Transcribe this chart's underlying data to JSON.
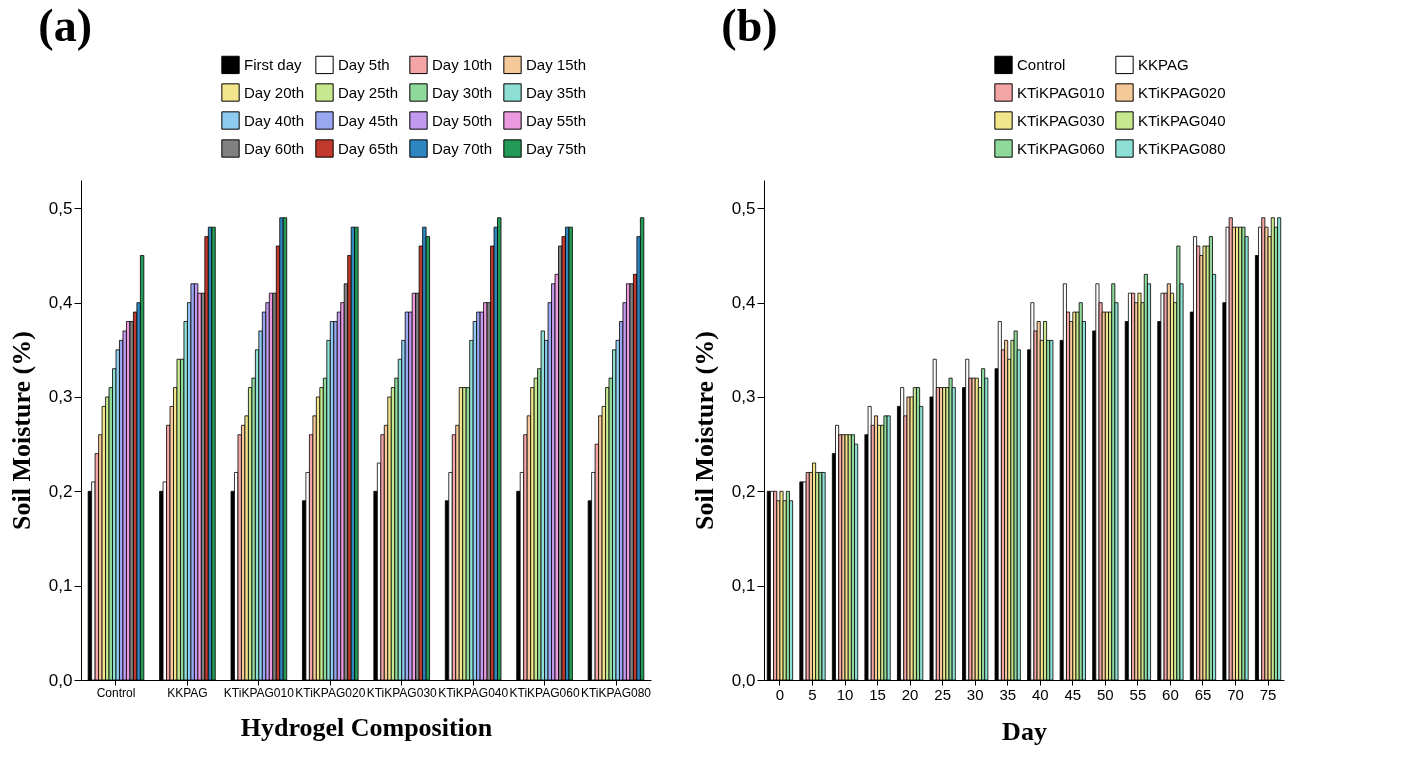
{
  "chart_data": [
    {
      "type": "bar",
      "title": "(a)",
      "xlabel": "Hydrogel Composition",
      "ylabel": "Soil Moisture (%)",
      "categories": [
        "Control",
        "KKPAG",
        "KTiKPAG010",
        "KTiKPAG020",
        "KTiKPAG030",
        "KTiKPAG040",
        "KTiKPAG060",
        "KTiKPAG080"
      ],
      "series": [
        {
          "name": "First day",
          "color": "#000000",
          "values": [
            0.2,
            0.2,
            0.2,
            0.19,
            0.2,
            0.19,
            0.2,
            0.19
          ]
        },
        {
          "name": "Day 5th",
          "color": "#ffffff",
          "values": [
            0.21,
            0.21,
            0.22,
            0.22,
            0.23,
            0.22,
            0.22,
            0.22
          ]
        },
        {
          "name": "Day 10th",
          "color": "#f4a6a6",
          "values": [
            0.24,
            0.27,
            0.26,
            0.26,
            0.26,
            0.26,
            0.26,
            0.25
          ]
        },
        {
          "name": "Day 15th",
          "color": "#f6c99a",
          "values": [
            0.26,
            0.29,
            0.27,
            0.28,
            0.27,
            0.27,
            0.28,
            0.28
          ]
        },
        {
          "name": "Day 20th",
          "color": "#f2e58c",
          "values": [
            0.29,
            0.31,
            0.28,
            0.3,
            0.3,
            0.31,
            0.31,
            0.29
          ]
        },
        {
          "name": "Day 25th",
          "color": "#c7e88f",
          "values": [
            0.3,
            0.34,
            0.31,
            0.31,
            0.31,
            0.31,
            0.32,
            0.31
          ]
        },
        {
          "name": "Day 30th",
          "color": "#8fd99a",
          "values": [
            0.31,
            0.34,
            0.32,
            0.32,
            0.32,
            0.31,
            0.33,
            0.32
          ]
        },
        {
          "name": "Day 35th",
          "color": "#8fe0d4",
          "values": [
            0.33,
            0.38,
            0.35,
            0.36,
            0.34,
            0.36,
            0.37,
            0.35
          ]
        },
        {
          "name": "Day 40th",
          "color": "#8fcbf0",
          "values": [
            0.35,
            0.4,
            0.37,
            0.38,
            0.36,
            0.38,
            0.36,
            0.36
          ]
        },
        {
          "name": "Day 45th",
          "color": "#9aa8f2",
          "values": [
            0.36,
            0.42,
            0.39,
            0.38,
            0.39,
            0.39,
            0.4,
            0.38
          ]
        },
        {
          "name": "Day 50th",
          "color": "#c29af0",
          "values": [
            0.37,
            0.42,
            0.4,
            0.39,
            0.39,
            0.39,
            0.42,
            0.4
          ]
        },
        {
          "name": "Day 55th",
          "color": "#eb9ae0",
          "values": [
            0.38,
            0.41,
            0.41,
            0.4,
            0.41,
            0.4,
            0.43,
            0.42
          ]
        },
        {
          "name": "Day 60th",
          "color": "#808080",
          "values": [
            0.38,
            0.41,
            0.41,
            0.42,
            0.41,
            0.4,
            0.46,
            0.42
          ]
        },
        {
          "name": "Day 65th",
          "color": "#c0392b",
          "values": [
            0.39,
            0.47,
            0.46,
            0.45,
            0.46,
            0.46,
            0.47,
            0.43
          ]
        },
        {
          "name": "Day 70th",
          "color": "#2e86c1",
          "values": [
            0.4,
            0.48,
            0.49,
            0.48,
            0.48,
            0.48,
            0.48,
            0.47
          ]
        },
        {
          "name": "Day 75th",
          "color": "#239b56",
          "values": [
            0.45,
            0.48,
            0.49,
            0.48,
            0.47,
            0.49,
            0.48,
            0.49
          ]
        }
      ],
      "ylim": [
        0,
        0.53
      ],
      "yticks": [
        {
          "value": 0,
          "label": "0,0"
        },
        {
          "value": 0.1,
          "label": "0,1"
        },
        {
          "value": 0.2,
          "label": "0,2"
        },
        {
          "value": 0.3,
          "label": "0,3"
        },
        {
          "value": 0.4,
          "label": "0,4"
        },
        {
          "value": 0.5,
          "label": "0,5"
        }
      ],
      "legend": "top right"
    },
    {
      "type": "bar",
      "title": "(b)",
      "xlabel": "Day",
      "ylabel": "Soil Moisture (%)",
      "categories": [
        "0",
        "5",
        "10",
        "15",
        "20",
        "25",
        "30",
        "35",
        "40",
        "45",
        "50",
        "55",
        "60",
        "65",
        "70",
        "75"
      ],
      "series": [
        {
          "name": "Control",
          "color": "#000000",
          "values": [
            0.2,
            0.21,
            0.24,
            0.26,
            0.29,
            0.3,
            0.31,
            0.33,
            0.35,
            0.36,
            0.37,
            0.38,
            0.38,
            0.39,
            0.4,
            0.45
          ]
        },
        {
          "name": "KKPAG",
          "color": "#ffffff",
          "values": [
            0.2,
            0.21,
            0.27,
            0.29,
            0.31,
            0.34,
            0.34,
            0.38,
            0.4,
            0.42,
            0.42,
            0.41,
            0.41,
            0.47,
            0.48,
            0.48
          ]
        },
        {
          "name": "KTiKPAG010",
          "color": "#f4a6a6",
          "values": [
            0.2,
            0.22,
            0.26,
            0.27,
            0.28,
            0.31,
            0.32,
            0.35,
            0.37,
            0.39,
            0.4,
            0.41,
            0.41,
            0.46,
            0.49,
            0.49
          ]
        },
        {
          "name": "KTiKPAG020",
          "color": "#f6c99a",
          "values": [
            0.19,
            0.22,
            0.26,
            0.28,
            0.3,
            0.31,
            0.32,
            0.36,
            0.38,
            0.38,
            0.39,
            0.4,
            0.42,
            0.45,
            0.48,
            0.48
          ]
        },
        {
          "name": "KTiKPAG030",
          "color": "#f2e58c",
          "values": [
            0.2,
            0.23,
            0.26,
            0.27,
            0.3,
            0.31,
            0.32,
            0.34,
            0.36,
            0.39,
            0.39,
            0.41,
            0.41,
            0.46,
            0.48,
            0.47
          ]
        },
        {
          "name": "KTiKPAG040",
          "color": "#c7e88f",
          "values": [
            0.19,
            0.22,
            0.26,
            0.27,
            0.31,
            0.31,
            0.31,
            0.36,
            0.38,
            0.39,
            0.39,
            0.4,
            0.4,
            0.46,
            0.48,
            0.49
          ]
        },
        {
          "name": "KTiKPAG060",
          "color": "#8fd99a",
          "values": [
            0.2,
            0.22,
            0.26,
            0.28,
            0.31,
            0.32,
            0.33,
            0.37,
            0.36,
            0.4,
            0.42,
            0.43,
            0.46,
            0.47,
            0.48,
            0.48
          ]
        },
        {
          "name": "KTiKPAG080",
          "color": "#8fe0d4",
          "values": [
            0.19,
            0.22,
            0.25,
            0.28,
            0.29,
            0.31,
            0.32,
            0.35,
            0.36,
            0.38,
            0.4,
            0.42,
            0.42,
            0.43,
            0.47,
            0.49
          ]
        }
      ],
      "ylim": [
        0,
        0.53
      ],
      "yticks": [
        {
          "value": 0,
          "label": "0,0"
        },
        {
          "value": 0.1,
          "label": "0,1"
        },
        {
          "value": 0.2,
          "label": "0,2"
        },
        {
          "value": 0.3,
          "label": "0,3"
        },
        {
          "value": 0.4,
          "label": "0,4"
        },
        {
          "value": 0.5,
          "label": "0,5"
        }
      ],
      "legend": "top right"
    }
  ]
}
